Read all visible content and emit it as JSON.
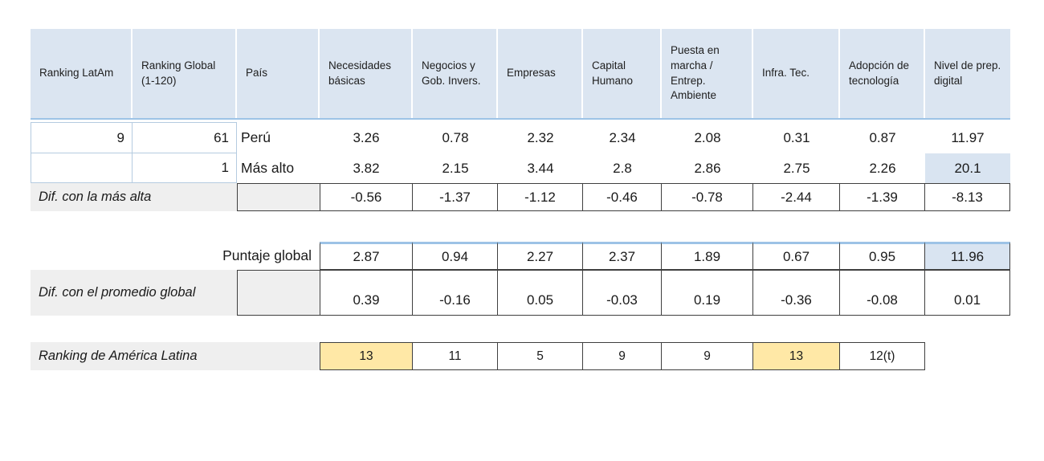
{
  "colors": {
    "header_bg": "#dbe5f1",
    "accent_line": "#9dc3e6",
    "highlight_blue": "#d9e4f1",
    "highlight_yellow": "#ffe8a6",
    "label_bg": "#efefef",
    "dark_border": "#3f3f3f",
    "light_border": "#b5cbe0",
    "text": "#1a1a1a"
  },
  "chart_data": {
    "type": "table",
    "columns": [
      "Ranking LatAm",
      "Ranking Global  (1-120)",
      "País",
      "Necesidades básicas",
      "Negocios y Gob. Invers.",
      "Empresas",
      "Capital Humano",
      "Puesta en marcha / Entrep. Ambiente",
      "Infra. Tec.",
      "Adopción de tecnología",
      "Nivel de prep. digital"
    ],
    "rows": {
      "peru": {
        "ranking_latam": "9",
        "ranking_global": "61",
        "pais": "Perú",
        "scores": [
          "3.26",
          "0.78",
          "2.32",
          "2.34",
          "2.08",
          "0.31",
          "0.87",
          "11.97"
        ]
      },
      "mas_alto": {
        "ranking_latam": "",
        "ranking_global": "1",
        "pais": "Más alto",
        "scores": [
          "3.82",
          "2.15",
          "3.44",
          "2.8",
          "2.86",
          "2.75",
          "2.26",
          "20.1"
        ]
      },
      "dif_mas_alta": {
        "label": "Dif. con la más alta",
        "scores": [
          "-0.56",
          "-1.37",
          "-1.12",
          "-0.46",
          "-0.78",
          "-2.44",
          "-1.39",
          "-8.13"
        ]
      },
      "puntaje_global": {
        "label": "Puntaje global",
        "scores": [
          "2.87",
          "0.94",
          "2.27",
          "2.37",
          "1.89",
          "0.67",
          "0.95",
          "11.96"
        ]
      },
      "dif_promedio_global": {
        "label": "Dif. con el promedio global",
        "scores": [
          "0.39",
          "-0.16",
          "0.05",
          "-0.03",
          "0.19",
          "-0.36",
          "-0.08",
          "0.01"
        ]
      },
      "ranking_america_latina": {
        "label": "Ranking de América Latina",
        "ranks": [
          "13",
          "11",
          "5",
          "9",
          "9",
          "13",
          "12(t)"
        ]
      }
    }
  }
}
